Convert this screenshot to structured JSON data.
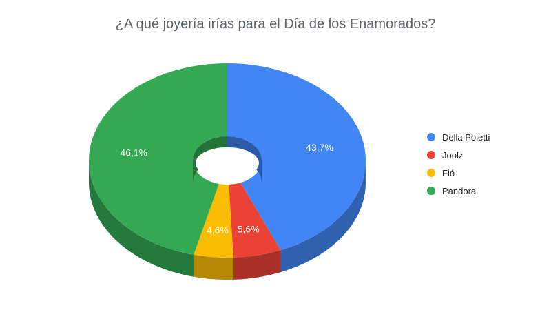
{
  "chart_data": {
    "type": "pie",
    "title": "¿A qué joyería irías para el Día de los Enamorados?",
    "donut": true,
    "three_d": true,
    "legend_position": "right",
    "slices": [
      {
        "name": "Della Poletti",
        "value": 43.7,
        "label": "43,7%",
        "color": "#4285f4"
      },
      {
        "name": "Joolz",
        "value": 5.6,
        "label": "5,6%",
        "color": "#ea4335"
      },
      {
        "name": "Fió",
        "value": 4.6,
        "label": "4,6%",
        "color": "#fbbc04"
      },
      {
        "name": "Pandora",
        "value": 46.1,
        "label": "46,1%",
        "color": "#34a853"
      }
    ]
  }
}
